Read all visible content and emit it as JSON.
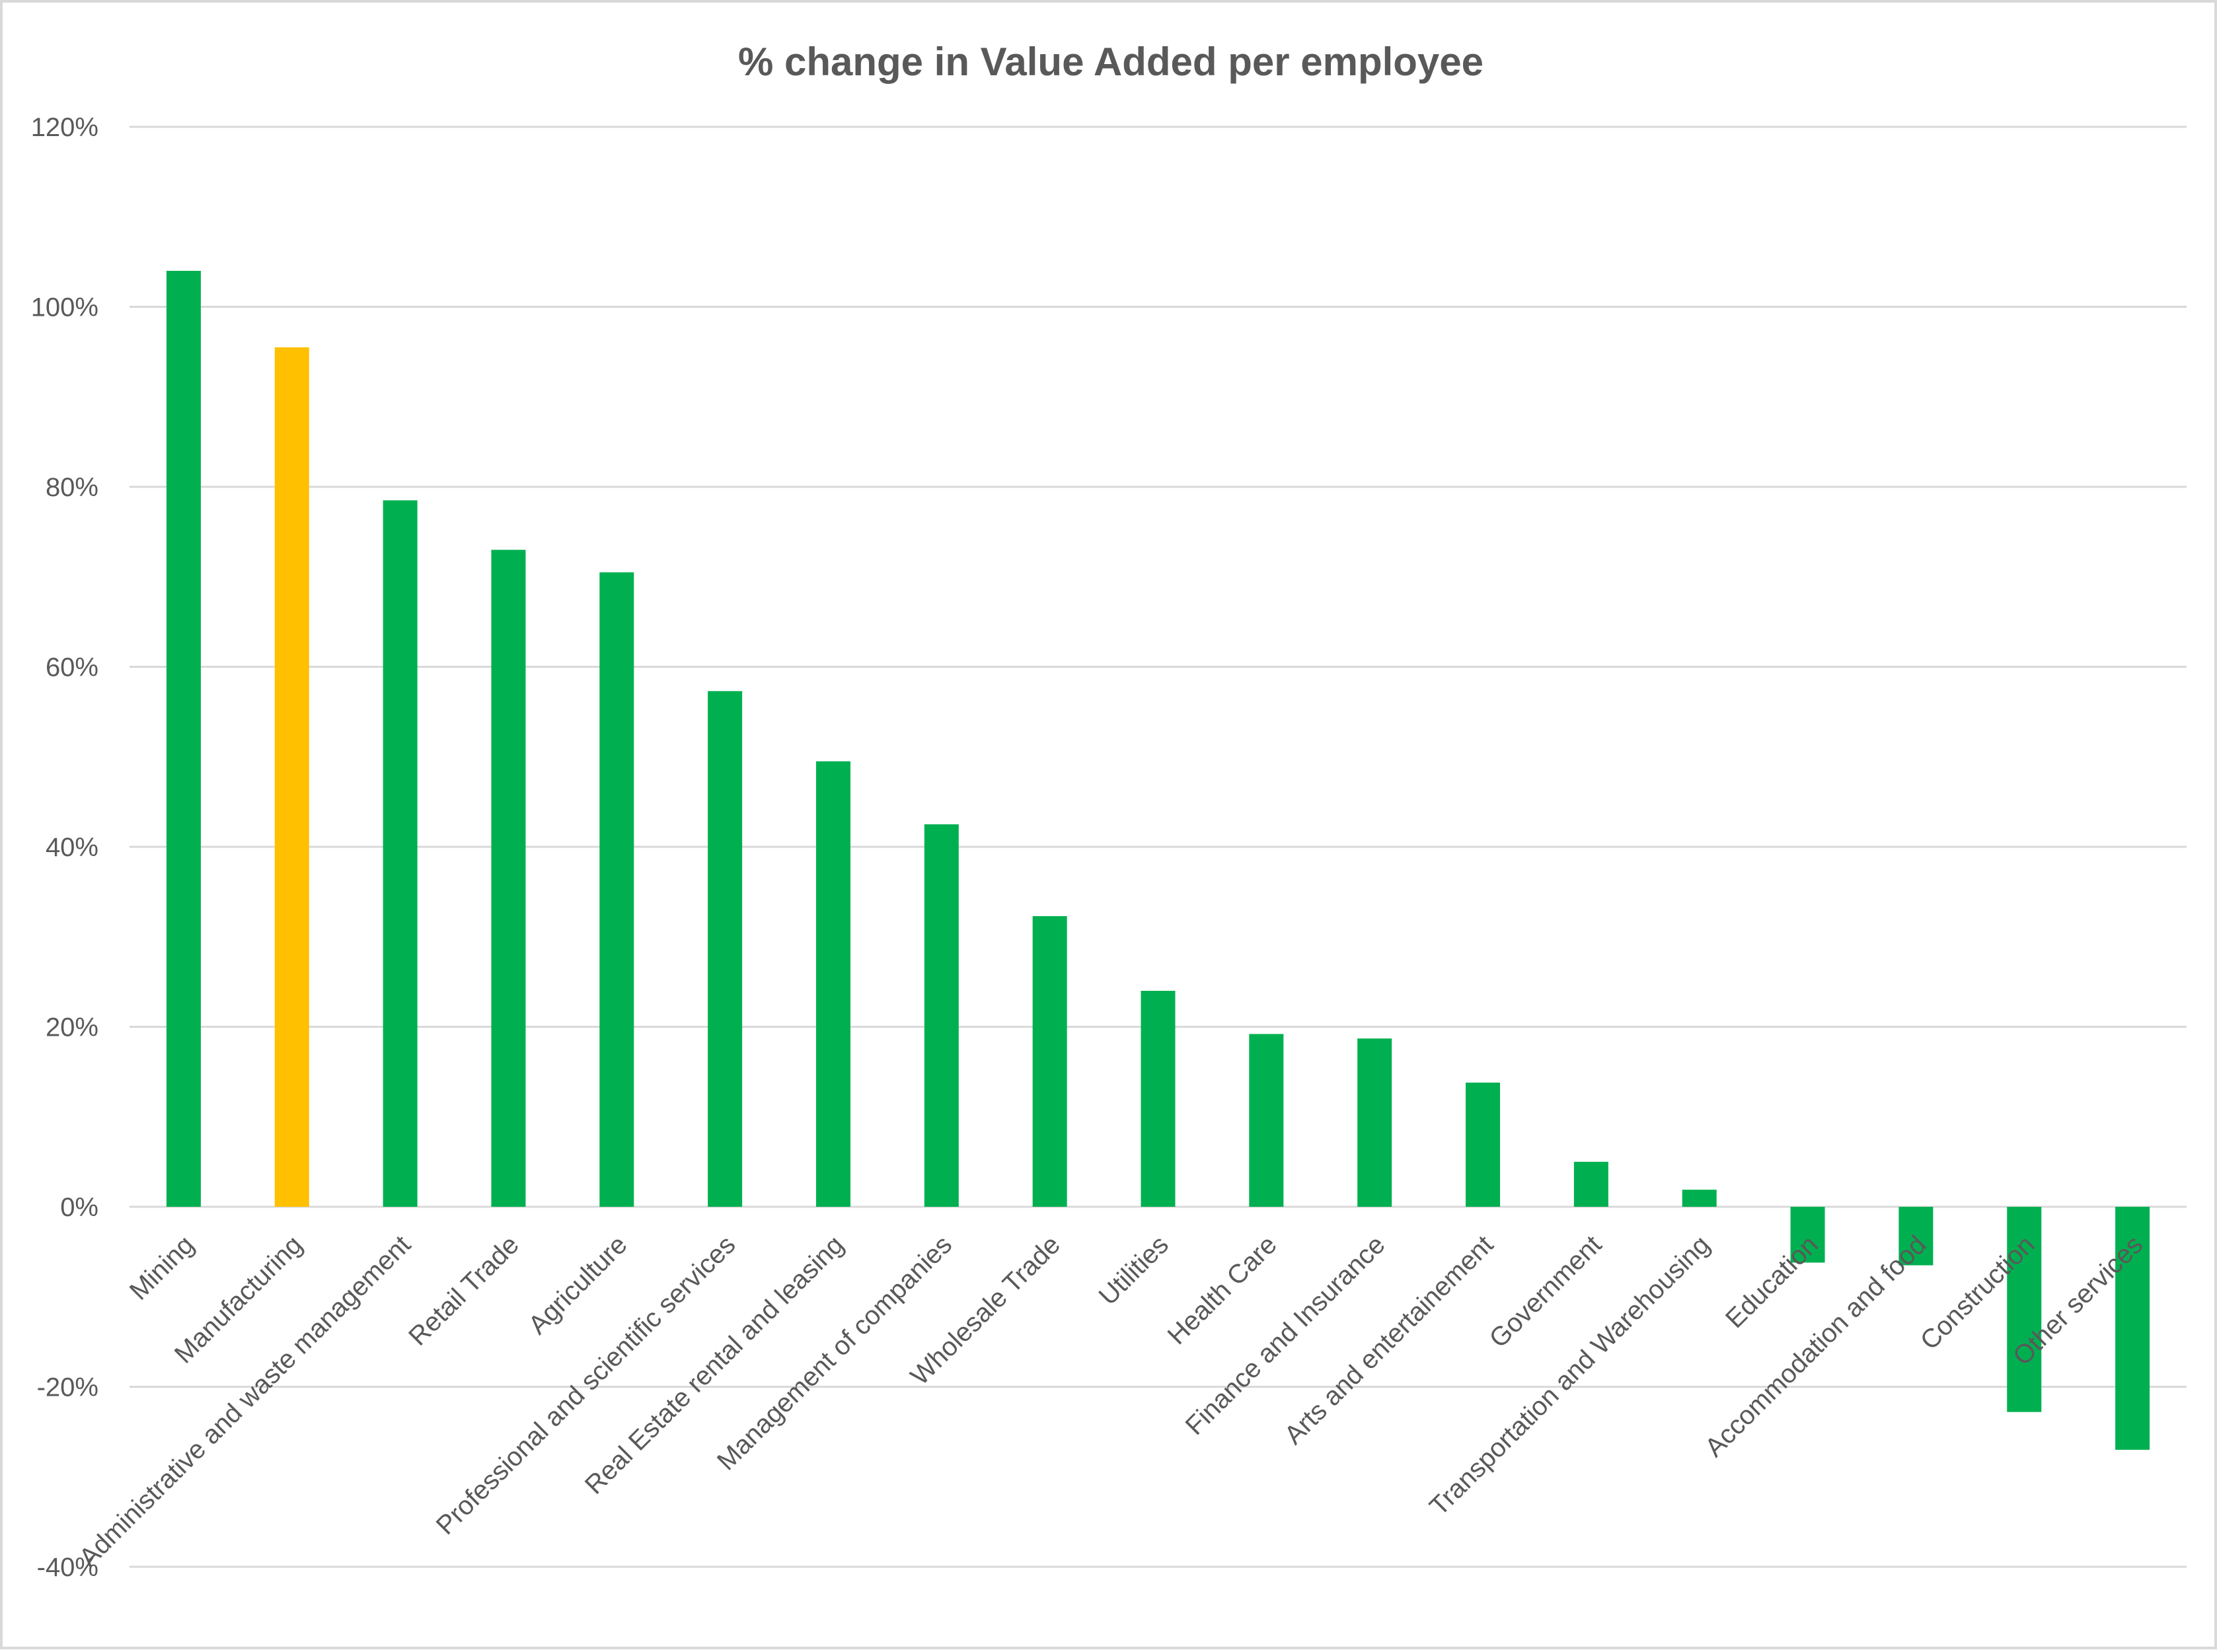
{
  "chart_data": {
    "type": "bar",
    "title": "% change in Value Added per employee",
    "xlabel": "",
    "ylabel": "",
    "ylim": [
      -40,
      120
    ],
    "yticks": [
      120,
      100,
      80,
      60,
      40,
      20,
      0,
      -20,
      -40
    ],
    "ytick_labels": [
      "120%",
      "100%",
      "80%",
      "60%",
      "40%",
      "20%",
      "0%",
      "-20%",
      "-40%"
    ],
    "grid": true,
    "legend": "none",
    "categories": [
      "Mining",
      "Manufacturing",
      "Administrative and waste management",
      "Retail Trade",
      "Agriculture",
      "Professional and scientific services",
      "Real Estate rental and leasing",
      "Management of companies",
      "Wholesale Trade",
      "Utilities",
      "Health Care",
      "Finance and Insurance",
      "Arts and entertainement",
      "Government",
      "Transportation and Warehousing",
      "Education",
      "Accommodation and food",
      "Construction",
      "Other services"
    ],
    "values": [
      104,
      95.5,
      78.5,
      73,
      70.5,
      57.3,
      49.5,
      42.5,
      32.3,
      24,
      19.2,
      18.7,
      13.8,
      5,
      1.9,
      -6.2,
      -6.5,
      -22.8,
      -27
    ],
    "colors": {
      "default": "#00b050",
      "highlight": "#ffc000",
      "highlight_category": "Manufacturing"
    }
  }
}
